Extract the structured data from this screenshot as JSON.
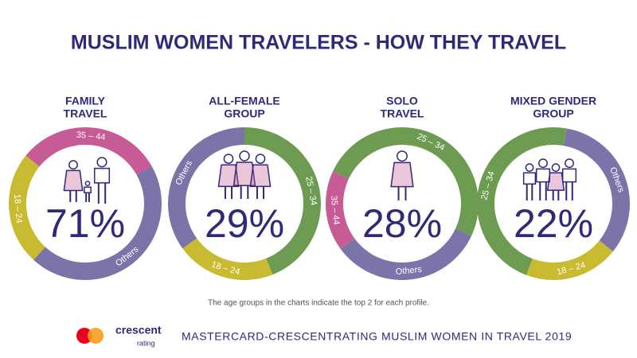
{
  "title": "MUSLIM WOMEN TRAVELERS - HOW THEY TRAVEL",
  "chart_data": [
    {
      "type": "pie",
      "title_lines": [
        "FAMILY",
        "TRAVEL"
      ],
      "center_label": "71%",
      "categories": [
        "35 – 44",
        "Others",
        "18 – 24"
      ],
      "values": [
        31,
        45,
        24
      ],
      "colors": [
        "#c75b95",
        "#7a74a8",
        "#c9bb31"
      ]
    },
    {
      "type": "pie",
      "title_lines": [
        "ALL-FEMALE",
        "GROUP"
      ],
      "center_label": "29%",
      "categories": [
        "25 – 34",
        "18 – 24",
        "Others"
      ],
      "values": [
        44,
        21,
        35
      ],
      "colors": [
        "#6e9b52",
        "#c9bb31",
        "#7a74a8"
      ]
    },
    {
      "type": "pie",
      "title_lines": [
        "SOLO",
        "TRAVEL"
      ],
      "center_label": "28%",
      "categories": [
        "25 – 34",
        "Others",
        "35 – 44"
      ],
      "values": [
        50,
        33,
        17
      ],
      "colors": [
        "#6e9b52",
        "#7a74a8",
        "#c75b95"
      ]
    },
    {
      "type": "pie",
      "title_lines": [
        "MIXED GENDER",
        "GROUP"
      ],
      "center_label": "22%",
      "categories": [
        "Others",
        "18 – 24",
        "25 – 34"
      ],
      "values": [
        33,
        20,
        47
      ],
      "colors": [
        "#7a74a8",
        "#c9bb31",
        "#6e9b52"
      ]
    }
  ],
  "footnote": "The age groups in the charts indicate the top 2 for each profile.",
  "logo": {
    "name": "crescent",
    "sub": "rating"
  },
  "footer": "MASTERCARD-CRESCENTRATING MUSLIM WOMEN IN TRAVEL 2019"
}
